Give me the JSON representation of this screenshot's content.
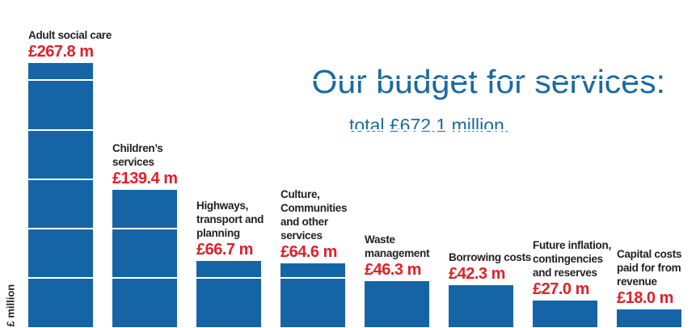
{
  "chart_data": {
    "type": "bar",
    "title": "Our budget for services:",
    "subtitle": "total £672.1 million.",
    "y_label": "£ million",
    "categories": [
      "Adult social care",
      "Children’s services",
      "Highways, transport and planning",
      "Culture, Communities and other services",
      "Waste management",
      "Borrowing costs",
      "Future inflation, contingencies and reserves",
      "Capital costs paid for from revenue"
    ],
    "values": [
      267.8,
      139.4,
      66.7,
      64.6,
      46.3,
      42.3,
      27.0,
      18.0
    ],
    "value_labels": [
      "£267.8 m",
      "£139.4 m",
      "£66.7 m",
      "£64.6 m",
      "£46.3 m",
      "£42.3 m",
      "£27.0 m",
      "£18.0 m"
    ],
    "color": "#1565a6",
    "ylim": [
      0,
      270
    ],
    "yticks": [
      0,
      50,
      100,
      150,
      200,
      250
    ],
    "grid": true
  }
}
